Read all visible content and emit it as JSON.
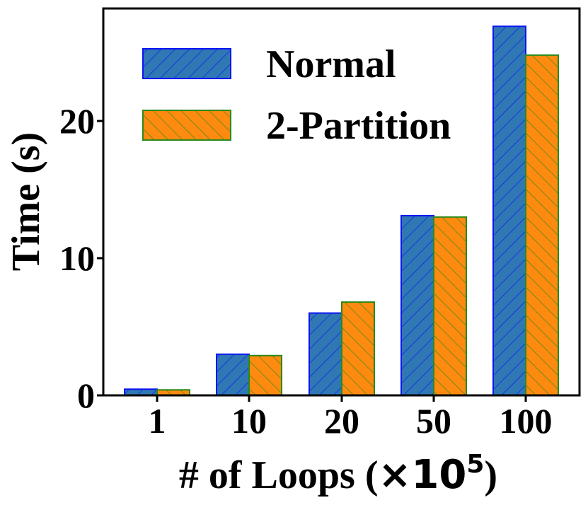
{
  "chart_data": {
    "type": "bar",
    "categories": [
      "1",
      "10",
      "20",
      "50",
      "100"
    ],
    "series": [
      {
        "name": "Normal",
        "values": [
          0.45,
          3.0,
          6.0,
          13.1,
          26.9
        ],
        "fill": "#2f78b4",
        "edge": "#0a14f5",
        "hatch": "forward"
      },
      {
        "name": "2-Partition",
        "values": [
          0.4,
          2.9,
          6.8,
          13.0,
          24.8
        ],
        "fill": "#ff8a10",
        "edge": "#2a8a1a",
        "hatch": "backward"
      }
    ],
    "title": "",
    "xlabel_main": "# of Loops (",
    "xlabel_times": "×10",
    "xlabel_exp": "5",
    "xlabel_close": ")",
    "ylabel": "Time (s)",
    "yticks": [
      0,
      10,
      20
    ],
    "ylim": [
      0,
      28.2
    ],
    "grid": false,
    "legend_position": "upper-left"
  }
}
